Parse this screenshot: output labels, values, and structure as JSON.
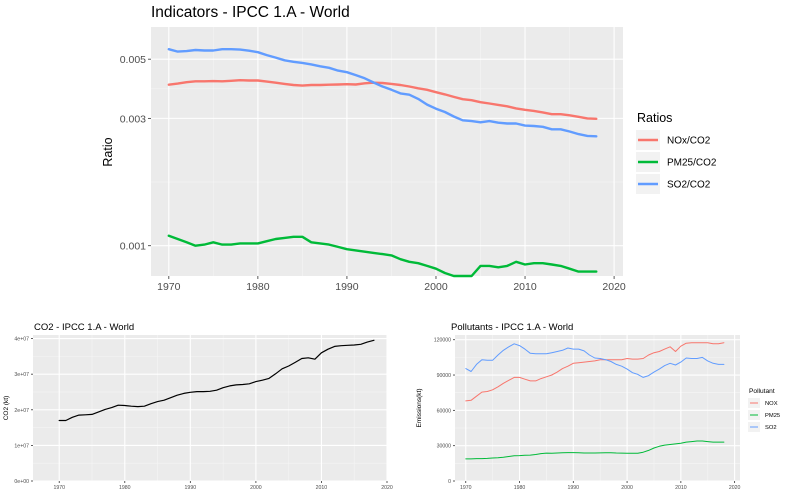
{
  "chart_data": [
    {
      "type": "line",
      "title": "Indicators - IPCC 1.A - World",
      "xlabel": "",
      "ylabel": "Ratio",
      "y_scale": "log",
      "xlim": [
        1968,
        2021
      ],
      "ylim": [
        0.00077,
        0.0066
      ],
      "x_ticks": [
        1970,
        1980,
        1990,
        2000,
        2010,
        2020
      ],
      "x_tick_labels": [
        "1970",
        "1980",
        "1990",
        "2000",
        "2010",
        "2020"
      ],
      "y_ticks": [
        0.001,
        0.003,
        0.005
      ],
      "y_tick_labels": [
        "0.001",
        "0.003",
        "0.005"
      ],
      "legend": {
        "title": "Ratios",
        "position": "right"
      },
      "x": [
        1970,
        1971,
        1972,
        1973,
        1974,
        1975,
        1976,
        1977,
        1978,
        1979,
        1980,
        1981,
        1982,
        1983,
        1984,
        1985,
        1986,
        1987,
        1988,
        1989,
        1990,
        1991,
        1992,
        1993,
        1994,
        1995,
        1996,
        1997,
        1998,
        1999,
        2000,
        2001,
        2002,
        2003,
        2004,
        2005,
        2006,
        2007,
        2008,
        2009,
        2010,
        2011,
        2012,
        2013,
        2014,
        2015,
        2016,
        2017,
        2018
      ],
      "series": [
        {
          "name": "NOx/CO2",
          "color": "#F8766D",
          "values": [
            0.00401,
            0.00405,
            0.0041,
            0.00413,
            0.00413,
            0.00414,
            0.00413,
            0.00415,
            0.00417,
            0.00416,
            0.00416,
            0.00412,
            0.00408,
            0.00404,
            0.004,
            0.00398,
            0.004,
            0.004,
            0.00401,
            0.00402,
            0.00403,
            0.00402,
            0.00406,
            0.00408,
            0.00407,
            0.00404,
            0.004,
            0.00395,
            0.00389,
            0.00384,
            0.00376,
            0.00369,
            0.00361,
            0.00354,
            0.00351,
            0.00345,
            0.00341,
            0.00337,
            0.00333,
            0.00327,
            0.00323,
            0.0032,
            0.00316,
            0.00311,
            0.00311,
            0.00308,
            0.00304,
            0.003,
            0.00299
          ]
        },
        {
          "name": "PM25/CO2",
          "color": "#00BA38",
          "values": [
            0.00109,
            0.00106,
            0.00103,
            0.001,
            0.00101,
            0.00103,
            0.00101,
            0.00101,
            0.00102,
            0.00102,
            0.00102,
            0.00104,
            0.00106,
            0.00107,
            0.00108,
            0.00108,
            0.00103,
            0.00102,
            0.00101,
            0.00099,
            0.00097,
            0.00096,
            0.00095,
            0.00094,
            0.00093,
            0.00092,
            0.00089,
            0.00087,
            0.00086,
            0.00084,
            0.00082,
            0.00079,
            0.00077,
            0.00077,
            0.00077,
            0.00084,
            0.00084,
            0.00083,
            0.00084,
            0.00087,
            0.00085,
            0.00086,
            0.00086,
            0.00085,
            0.00084,
            0.00082,
            0.0008,
            0.0008,
            0.0008
          ]
        },
        {
          "name": "SO2/CO2",
          "color": "#619CFF",
          "values": [
            0.00545,
            0.00534,
            0.00536,
            0.00541,
            0.00539,
            0.00539,
            0.00545,
            0.00545,
            0.00543,
            0.00538,
            0.00531,
            0.00518,
            0.00507,
            0.00495,
            0.00489,
            0.00484,
            0.00478,
            0.0047,
            0.00464,
            0.00453,
            0.00447,
            0.00436,
            0.00424,
            0.00409,
            0.00395,
            0.00384,
            0.00372,
            0.00368,
            0.00355,
            0.00338,
            0.00326,
            0.00317,
            0.00305,
            0.00295,
            0.00293,
            0.0029,
            0.00293,
            0.00289,
            0.00287,
            0.00287,
            0.00282,
            0.00281,
            0.00279,
            0.00273,
            0.00273,
            0.00268,
            0.00262,
            0.00258,
            0.00257
          ]
        }
      ]
    },
    {
      "type": "line",
      "title": "CO2 - IPCC 1.A - World",
      "xlabel": "",
      "ylabel": "CO2 (kt)",
      "xlim": [
        1966,
        2020
      ],
      "ylim": [
        0,
        41000000
      ],
      "x_ticks": [
        1970,
        1980,
        1990,
        2000,
        2010,
        2020
      ],
      "x_tick_labels": [
        "1970",
        "1980",
        "1990",
        "2000",
        "2010",
        "2020"
      ],
      "y_ticks": [
        0,
        10000000,
        20000000,
        30000000,
        40000000
      ],
      "y_tick_labels": [
        "0e+00",
        "1e+07",
        "2e+07",
        "3e+07",
        "4e+07"
      ],
      "x": [
        1970,
        1971,
        1972,
        1973,
        1974,
        1975,
        1976,
        1977,
        1978,
        1979,
        1980,
        1981,
        1982,
        1983,
        1984,
        1985,
        1986,
        1987,
        1988,
        1989,
        1990,
        1991,
        1992,
        1993,
        1994,
        1995,
        1996,
        1997,
        1998,
        1999,
        2000,
        2001,
        2002,
        2003,
        2004,
        2005,
        2006,
        2007,
        2008,
        2009,
        2010,
        2011,
        2012,
        2013,
        2014,
        2015,
        2016,
        2017,
        2018
      ],
      "series": [
        {
          "name": "CO2",
          "color": "#000000",
          "values": [
            17000000,
            17000000,
            17900000,
            18500000,
            18600000,
            18700000,
            19400000,
            20100000,
            20600000,
            21300000,
            21200000,
            21000000,
            20900000,
            21000000,
            21700000,
            22300000,
            22700000,
            23400000,
            24100000,
            24600000,
            24900000,
            25100000,
            25100000,
            25200000,
            25500000,
            26200000,
            26700000,
            27000000,
            27100000,
            27300000,
            27900000,
            28300000,
            28800000,
            30100000,
            31500000,
            32300000,
            33300000,
            34400000,
            34600000,
            34200000,
            36000000,
            37000000,
            37800000,
            38000000,
            38100000,
            38200000,
            38400000,
            39000000,
            39500000
          ]
        }
      ]
    },
    {
      "type": "line",
      "title": "Pollutants - IPCC 1.A - World",
      "xlabel": "",
      "ylabel": "Emissions(kt)",
      "xlim": [
        1968,
        2021
      ],
      "ylim": [
        0,
        124000
      ],
      "x_ticks": [
        1970,
        1980,
        1990,
        2000,
        2010,
        2020
      ],
      "x_tick_labels": [
        "1970",
        "1980",
        "1990",
        "2000",
        "2010",
        "2020"
      ],
      "y_ticks": [
        0,
        30000,
        60000,
        90000,
        120000
      ],
      "y_tick_labels": [
        "0",
        "30000",
        "60000",
        "90000",
        "120000"
      ],
      "legend": {
        "title": "Pollutant",
        "position": "right"
      },
      "x": [
        1970,
        1971,
        1972,
        1973,
        1974,
        1975,
        1976,
        1977,
        1978,
        1979,
        1980,
        1981,
        1982,
        1983,
        1984,
        1985,
        1986,
        1987,
        1988,
        1989,
        1990,
        1991,
        1992,
        1993,
        1994,
        1995,
        1996,
        1997,
        1998,
        1999,
        2000,
        2001,
        2002,
        2003,
        2004,
        2005,
        2006,
        2007,
        2008,
        2009,
        2010,
        2011,
        2012,
        2013,
        2014,
        2015,
        2016,
        2017,
        2018
      ],
      "series": [
        {
          "name": "NOX",
          "color": "#F8766D",
          "values": [
            68000,
            68500,
            72000,
            75500,
            76000,
            77500,
            80000,
            83000,
            85500,
            88000,
            88000,
            86500,
            85000,
            85000,
            87000,
            88500,
            90000,
            92500,
            95500,
            97500,
            100000,
            100500,
            101000,
            101500,
            102000,
            103000,
            103000,
            103000,
            103000,
            103000,
            104000,
            103500,
            103500,
            104000,
            107000,
            109000,
            110000,
            112000,
            114000,
            110000,
            114500,
            117000,
            117500,
            117500,
            117500,
            117500,
            116500,
            116500,
            117500
          ]
        },
        {
          "name": "PM25",
          "color": "#00BA38",
          "values": [
            18800,
            18800,
            19000,
            19000,
            19200,
            19500,
            19800,
            20200,
            20800,
            21500,
            21600,
            21800,
            22000,
            22500,
            23300,
            23700,
            23500,
            23800,
            24000,
            24100,
            24100,
            24000,
            23800,
            23800,
            23800,
            23900,
            24000,
            24000,
            23800,
            23700,
            23500,
            23500,
            23500,
            24500,
            26000,
            28000,
            29500,
            30500,
            31000,
            31500,
            32000,
            33000,
            33500,
            34000,
            34000,
            33500,
            33000,
            33000,
            33000
          ]
        },
        {
          "name": "SO2",
          "color": "#619CFF",
          "values": [
            95500,
            93000,
            99000,
            103000,
            102500,
            102500,
            107000,
            111000,
            114000,
            116500,
            115000,
            112000,
            108500,
            108000,
            108000,
            108000,
            109000,
            110000,
            111000,
            113000,
            112000,
            112000,
            110500,
            107000,
            104500,
            104000,
            103000,
            101500,
            99000,
            97500,
            95000,
            92000,
            90500,
            88000,
            89500,
            92500,
            95000,
            98000,
            100000,
            98500,
            101000,
            104500,
            104000,
            104000,
            105000,
            102000,
            100000,
            99000,
            99000
          ]
        }
      ]
    }
  ]
}
